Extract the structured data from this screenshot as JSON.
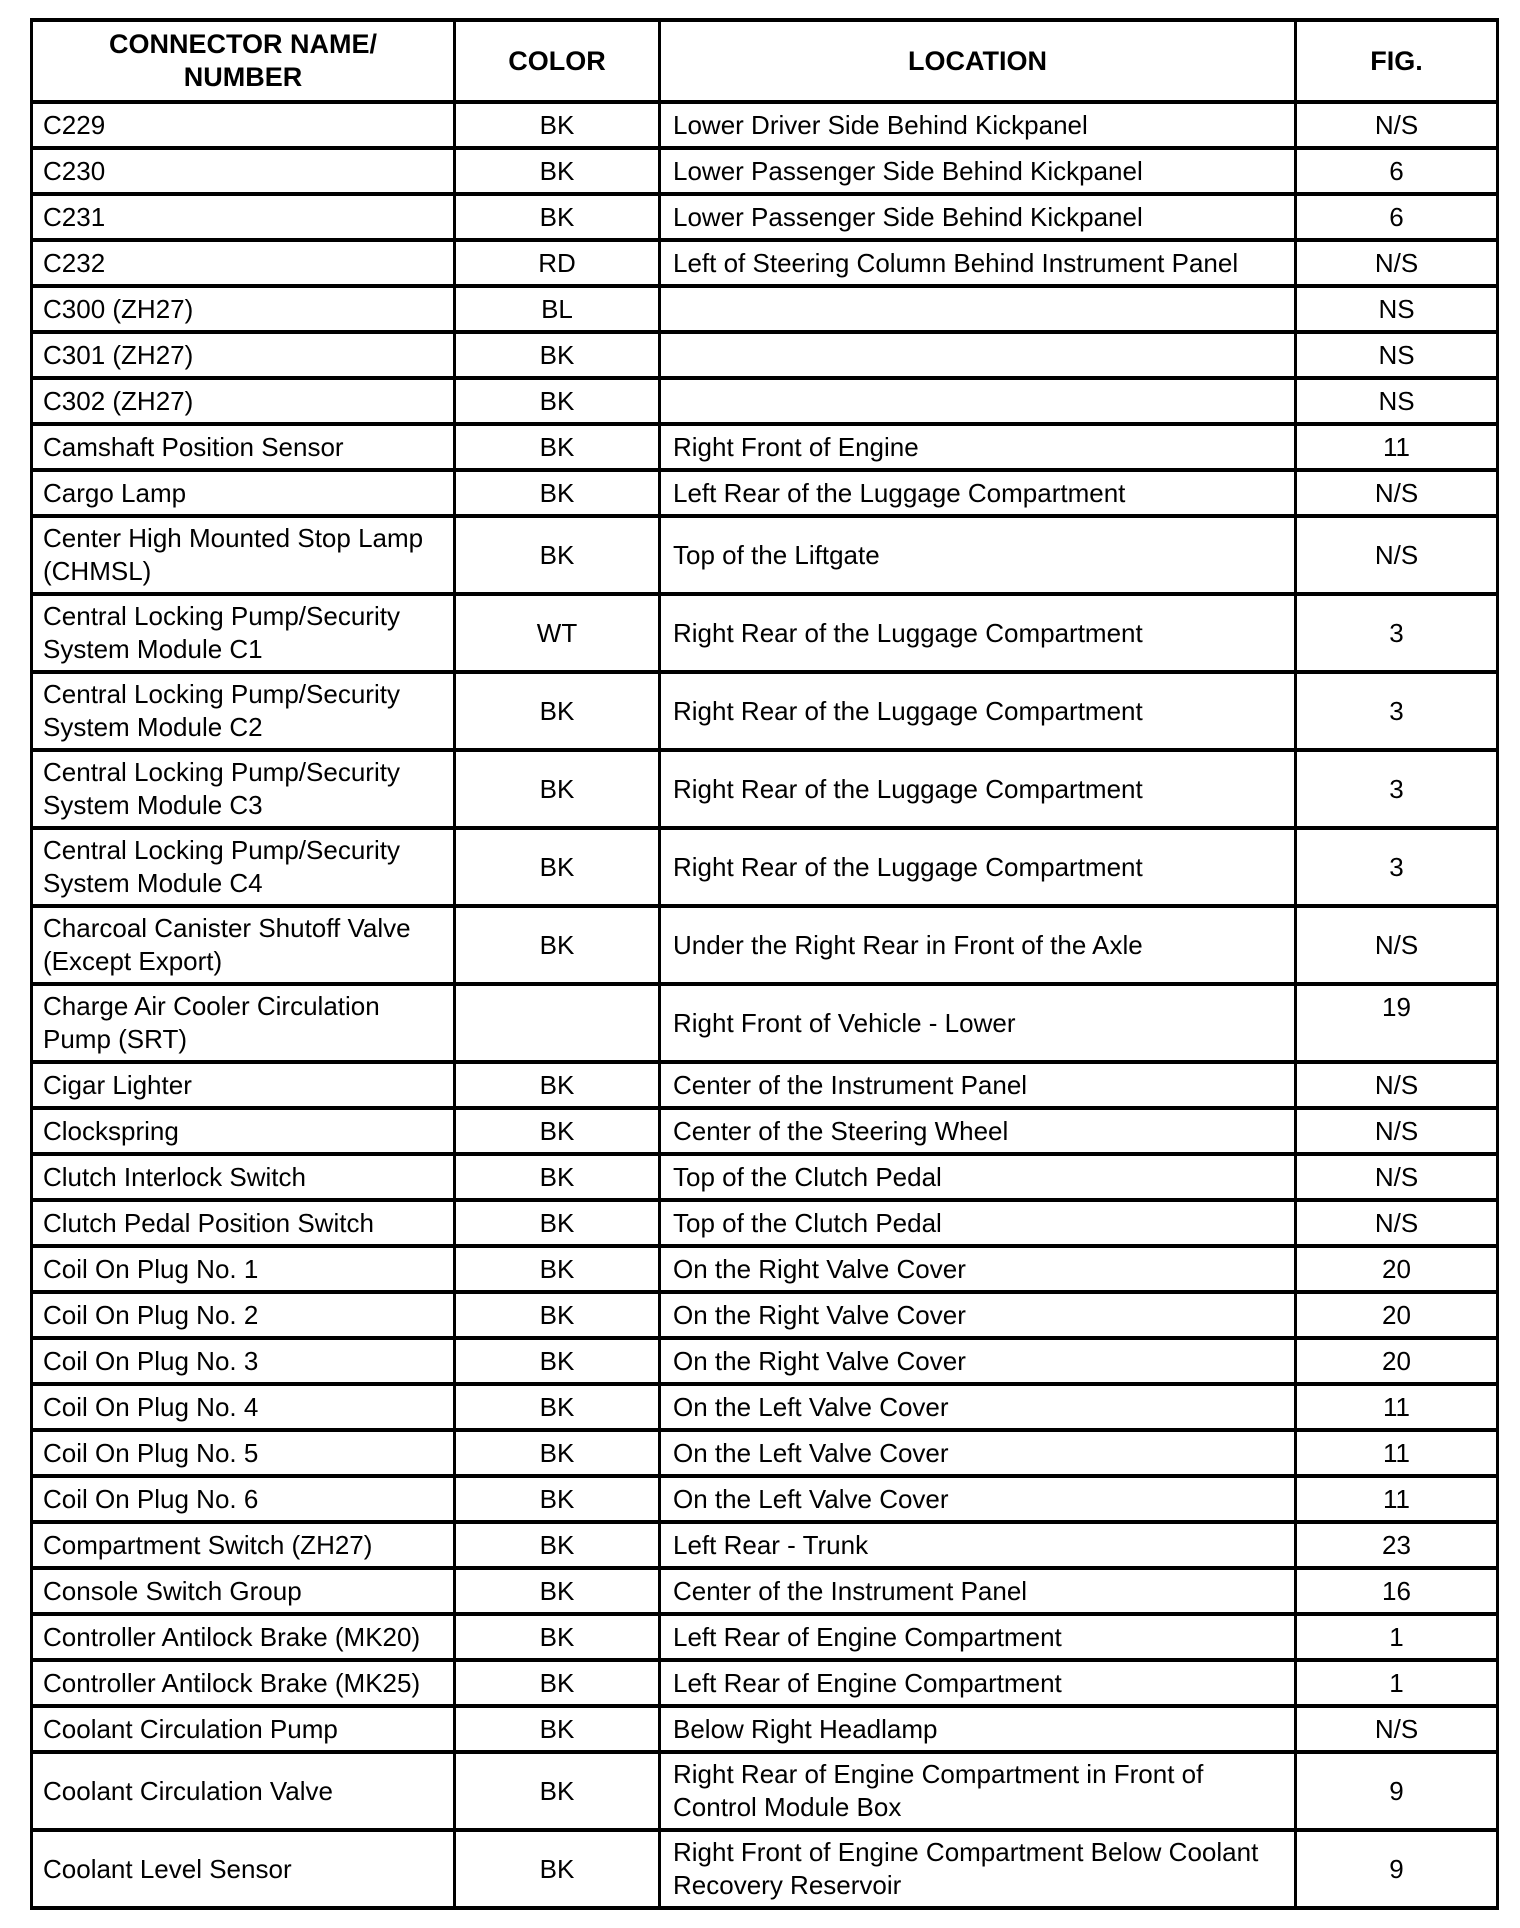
{
  "table": {
    "columns": {
      "name": {
        "line1": "CONNECTOR NAME/",
        "line2": "NUMBER"
      },
      "color": {
        "line1": "COLOR",
        "line2": ""
      },
      "location": {
        "line1": "LOCATION",
        "line2": ""
      },
      "fig": {
        "line1": "FIG.",
        "line2": ""
      }
    },
    "rows": [
      {
        "name": "C229",
        "color": "BK",
        "location": "Lower Driver Side Behind Kickpanel",
        "fig": "N/S"
      },
      {
        "name": "C230",
        "color": "BK",
        "location": "Lower Passenger Side Behind Kickpanel",
        "fig": "6"
      },
      {
        "name": "C231",
        "color": "BK",
        "location": "Lower Passenger Side Behind Kickpanel",
        "fig": "6"
      },
      {
        "name": "C232",
        "color": "RD",
        "location": "Left of Steering Column Behind Instrument Panel",
        "fig": "N/S"
      },
      {
        "name": "C300 (ZH27)",
        "color": "BL",
        "location": "",
        "fig": "NS"
      },
      {
        "name": "C301 (ZH27)",
        "color": "BK",
        "location": "",
        "fig": "NS"
      },
      {
        "name": "C302 (ZH27)",
        "color": "BK",
        "location": "",
        "fig": "NS"
      },
      {
        "name": "Camshaft Position Sensor",
        "color": "BK",
        "location": "Right Front of Engine",
        "fig": "11"
      },
      {
        "name": "Cargo Lamp",
        "color": "BK",
        "location": "Left Rear of the Luggage Compartment",
        "fig": "N/S"
      },
      {
        "name": "Center High Mounted Stop Lamp (CHMSL)",
        "color": "BK",
        "location": "Top of the Liftgate",
        "fig": "N/S"
      },
      {
        "name": "Central Locking Pump/Security System Module C1",
        "color": "WT",
        "location": "Right Rear of the Luggage Compartment",
        "fig": "3"
      },
      {
        "name": "Central Locking Pump/Security System Module C2",
        "color": "BK",
        "location": "Right Rear of the Luggage Compartment",
        "fig": "3"
      },
      {
        "name": "Central Locking Pump/Security System Module C3",
        "color": "BK",
        "location": "Right Rear of the Luggage Compartment",
        "fig": "3"
      },
      {
        "name": "Central Locking Pump/Security System Module C4",
        "color": "BK",
        "location": "Right Rear of the Luggage Compartment",
        "fig": "3"
      },
      {
        "name": "Charcoal Canister Shutoff Valve (Except Export)",
        "color": "BK",
        "location": "Under the Right Rear in Front of the Axle",
        "fig": "N/S"
      },
      {
        "name": "Charge Air Cooler Circulation Pump (SRT)",
        "color": "",
        "location": "Right Front of Vehicle - Lower",
        "fig": "19"
      },
      {
        "name": "Cigar Lighter",
        "color": "BK",
        "location": "Center of the Instrument Panel",
        "fig": "N/S"
      },
      {
        "name": "Clockspring",
        "color": "BK",
        "location": "Center of the Steering Wheel",
        "fig": "N/S"
      },
      {
        "name": "Clutch Interlock Switch",
        "color": "BK",
        "location": "Top of the Clutch Pedal",
        "fig": "N/S"
      },
      {
        "name": "Clutch Pedal Position Switch",
        "color": "BK",
        "location": "Top of the Clutch Pedal",
        "fig": "N/S"
      },
      {
        "name": "Coil On Plug No. 1",
        "color": "BK",
        "location": "On the Right Valve Cover",
        "fig": "20"
      },
      {
        "name": "Coil On Plug No. 2",
        "color": "BK",
        "location": "On the Right Valve Cover",
        "fig": "20"
      },
      {
        "name": "Coil On Plug No. 3",
        "color": "BK",
        "location": "On the Right Valve Cover",
        "fig": "20"
      },
      {
        "name": "Coil On Plug No. 4",
        "color": "BK",
        "location": "On the Left Valve Cover",
        "fig": "11"
      },
      {
        "name": "Coil On Plug No. 5",
        "color": "BK",
        "location": "On the Left Valve Cover",
        "fig": "11"
      },
      {
        "name": "Coil On Plug No. 6",
        "color": "BK",
        "location": "On the Left Valve Cover",
        "fig": "11"
      },
      {
        "name": "Compartment Switch (ZH27)",
        "color": "BK",
        "location": "Left Rear - Trunk",
        "fig": "23"
      },
      {
        "name": "Console Switch Group",
        "color": "BK",
        "location": "Center of the Instrument Panel",
        "fig": "16"
      },
      {
        "name": "Controller Antilock Brake (MK20)",
        "color": "BK",
        "location": "Left Rear of Engine Compartment",
        "fig": "1"
      },
      {
        "name": "Controller Antilock Brake (MK25)",
        "color": "BK",
        "location": "Left Rear of Engine Compartment",
        "fig": "1"
      },
      {
        "name": "Coolant Circulation Pump",
        "color": "BK",
        "location": "Below Right Headlamp",
        "fig": "N/S"
      },
      {
        "name": "Coolant Circulation Valve",
        "color": "BK",
        "location": "Right Rear of Engine Compartment in Front of Control Module Box",
        "fig": "9"
      },
      {
        "name": "Coolant Level Sensor",
        "color": "BK",
        "location": "Right Front of Engine Compartment Below Coolant Recovery Reservoir",
        "fig": "9"
      }
    ]
  }
}
